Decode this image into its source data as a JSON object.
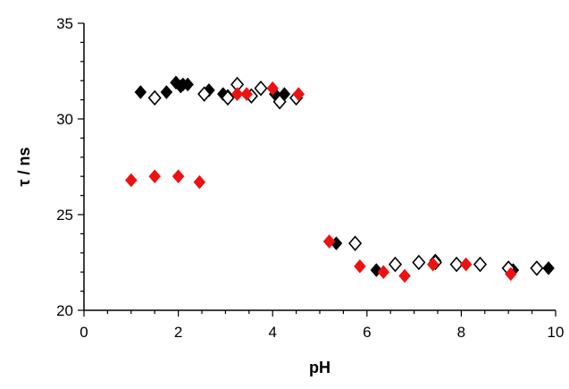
{
  "chart_data": {
    "type": "scatter",
    "title": "",
    "xlabel": "pH",
    "ylabel": "τ / ns",
    "xlim": [
      0,
      10
    ],
    "ylim": [
      20,
      35
    ],
    "xticks": [
      0,
      2,
      4,
      6,
      8,
      10
    ],
    "yticks": [
      20,
      25,
      30,
      35
    ],
    "grid": false,
    "legend": "none",
    "series": [
      {
        "marker": "filled-diamond",
        "color": "#000000",
        "points": [
          [
            1.2,
            31.4
          ],
          [
            1.75,
            31.4
          ],
          [
            1.95,
            31.9
          ],
          [
            2.05,
            31.7
          ],
          [
            2.1,
            31.8
          ],
          [
            2.2,
            31.8
          ],
          [
            2.65,
            31.5
          ],
          [
            2.95,
            31.3
          ],
          [
            3.05,
            31.2
          ],
          [
            4.05,
            31.3
          ],
          [
            4.25,
            31.3
          ],
          [
            5.35,
            23.5
          ],
          [
            6.2,
            22.1
          ],
          [
            7.45,
            22.6
          ],
          [
            9.1,
            22.1
          ],
          [
            9.85,
            22.2
          ]
        ]
      },
      {
        "marker": "open-diamond",
        "color": "#000000",
        "points": [
          [
            1.5,
            31.1
          ],
          [
            2.55,
            31.3
          ],
          [
            3.05,
            31.1
          ],
          [
            3.25,
            31.8
          ],
          [
            3.55,
            31.2
          ],
          [
            3.75,
            31.6
          ],
          [
            4.15,
            30.9
          ],
          [
            4.5,
            31.1
          ],
          [
            5.75,
            23.5
          ],
          [
            6.6,
            22.4
          ],
          [
            7.1,
            22.5
          ],
          [
            7.45,
            22.5
          ],
          [
            7.9,
            22.4
          ],
          [
            8.4,
            22.4
          ],
          [
            9.0,
            22.2
          ],
          [
            9.6,
            22.2
          ]
        ]
      },
      {
        "marker": "filled-diamond",
        "color": "#ee1111",
        "points": [
          [
            1.0,
            26.8
          ],
          [
            1.5,
            27.0
          ],
          [
            2.0,
            27.0
          ],
          [
            2.45,
            26.7
          ],
          [
            3.25,
            31.3
          ],
          [
            3.45,
            31.3
          ],
          [
            4.0,
            31.6
          ],
          [
            4.55,
            31.3
          ],
          [
            5.2,
            23.6
          ],
          [
            5.85,
            22.3
          ],
          [
            6.35,
            22.0
          ],
          [
            6.8,
            21.8
          ],
          [
            7.4,
            22.4
          ],
          [
            8.1,
            22.4
          ],
          [
            9.05,
            21.9
          ]
        ]
      }
    ]
  }
}
